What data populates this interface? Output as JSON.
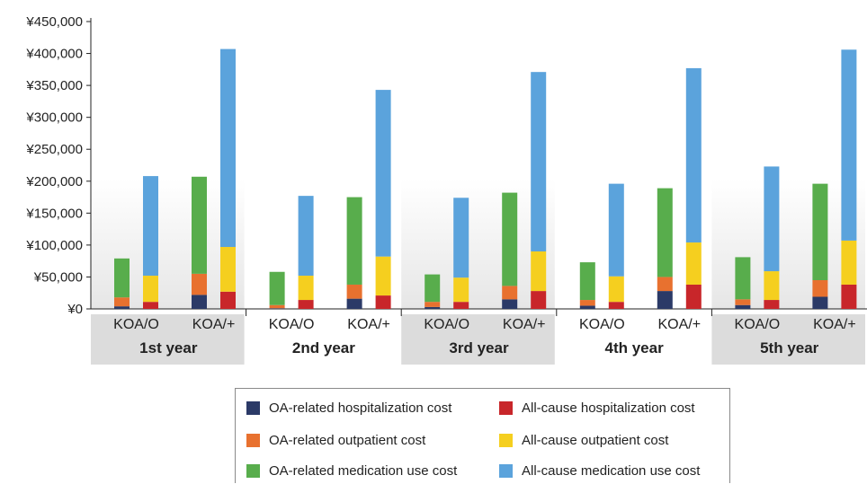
{
  "chart_data": {
    "type": "bar",
    "stacked": true,
    "title": "",
    "xlabel": "",
    "ylabel": "",
    "ylim": [
      0,
      450000
    ],
    "yticks": [
      "¥0",
      "¥50,000",
      "¥100,000",
      "¥150,000",
      "¥200,000",
      "¥250,000",
      "¥300,000",
      "¥350,000",
      "¥400,000",
      "¥450,000"
    ],
    "ytick_values": [
      0,
      50000,
      100000,
      150000,
      200000,
      250000,
      300000,
      350000,
      400000,
      450000
    ],
    "groups": [
      "1st year",
      "2nd year",
      "3rd year",
      "4th year",
      "5th year"
    ],
    "cohorts": [
      "KOA/O",
      "KOA/+"
    ],
    "stacks": [
      {
        "name": "OA-related",
        "series": [
          "OA-related hospitalization cost",
          "OA-related outpatient cost",
          "OA-related medication use cost"
        ]
      },
      {
        "name": "All-cause",
        "series": [
          "All-cause hospitalization cost",
          "All-cause outpatient cost",
          "All-cause medication use cost"
        ]
      }
    ],
    "series": [
      {
        "name": "OA-related hospitalization cost",
        "color": "#2b3a67",
        "values": [
          [
            4000,
            22000
          ],
          [
            1000,
            16000
          ],
          [
            3000,
            15000
          ],
          [
            5000,
            28000
          ],
          [
            6000,
            19000
          ]
        ]
      },
      {
        "name": "OA-related outpatient cost",
        "color": "#e8712f",
        "values": [
          [
            14000,
            33000
          ],
          [
            5000,
            22000
          ],
          [
            8000,
            21000
          ],
          [
            9000,
            22000
          ],
          [
            9000,
            26000
          ]
        ]
      },
      {
        "name": "OA-related medication use cost",
        "color": "#58ad4c",
        "values": [
          [
            61000,
            152000
          ],
          [
            52000,
            137000
          ],
          [
            43000,
            146000
          ],
          [
            59000,
            139000
          ],
          [
            66000,
            151000
          ]
        ]
      },
      {
        "name": "All-cause hospitalization cost",
        "color": "#c8262a",
        "values": [
          [
            11000,
            27000
          ],
          [
            14000,
            21000
          ],
          [
            11000,
            28000
          ],
          [
            11000,
            38000
          ],
          [
            14000,
            38000
          ]
        ]
      },
      {
        "name": "All-cause outpatient cost",
        "color": "#f5cf1f",
        "values": [
          [
            41000,
            70000
          ],
          [
            38000,
            61000
          ],
          [
            38000,
            62000
          ],
          [
            40000,
            66000
          ],
          [
            45000,
            69000
          ]
        ]
      },
      {
        "name": "All-cause medication use cost",
        "color": "#5ba3dc",
        "values": [
          [
            156000,
            310000
          ],
          [
            125000,
            261000
          ],
          [
            125000,
            281000
          ],
          [
            145000,
            273000
          ],
          [
            164000,
            299000
          ]
        ]
      }
    ],
    "legend_position": "bottom",
    "grid": false
  }
}
